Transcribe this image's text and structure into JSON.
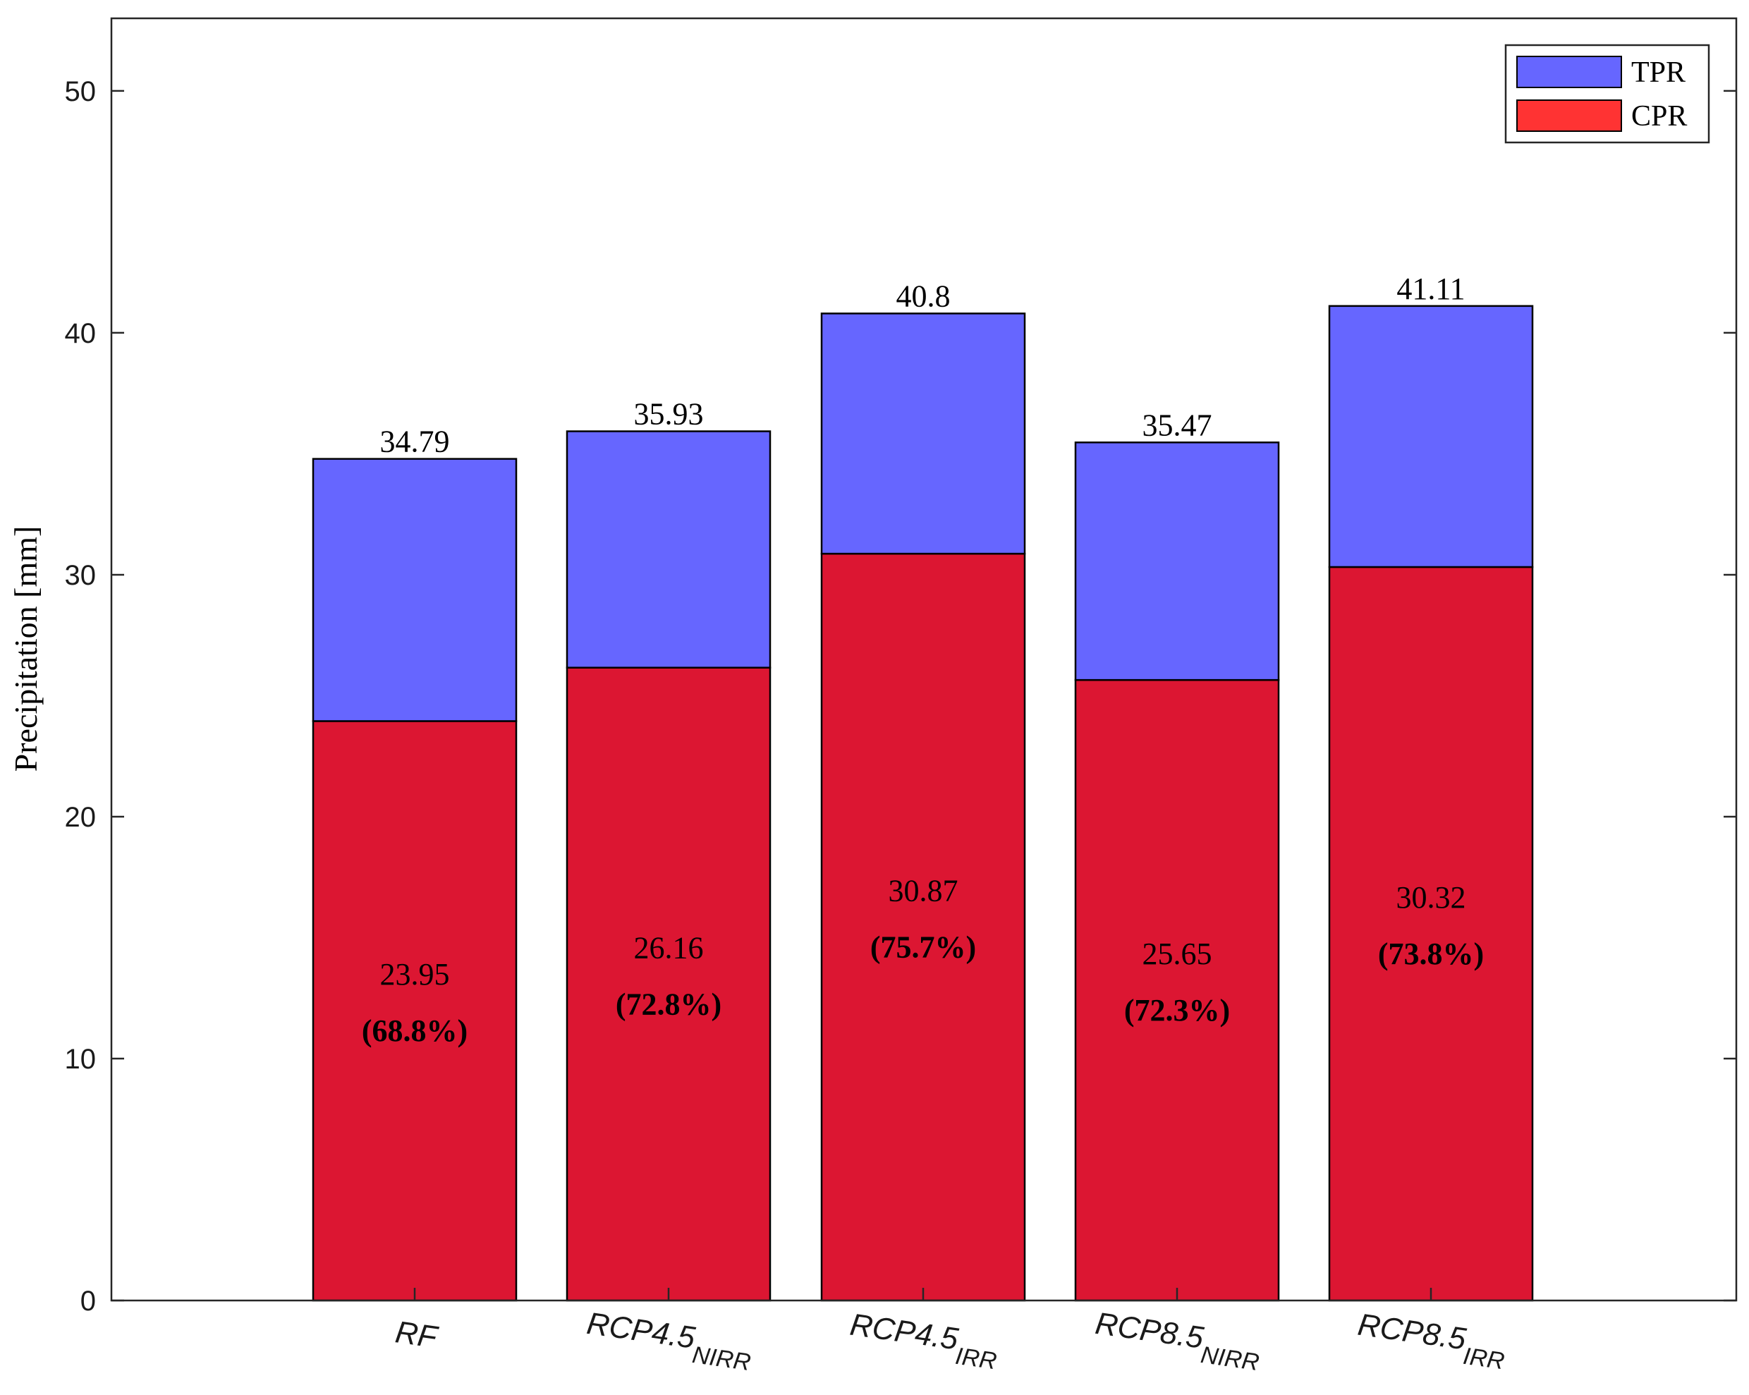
{
  "chart_data": {
    "type": "bar",
    "stacked": true,
    "title": "",
    "xlabel": "",
    "ylabel": "Precipitation [mm]",
    "ylim": [
      0,
      53
    ],
    "yticks": [
      0,
      10,
      20,
      30,
      40,
      50
    ],
    "grid": false,
    "legend_position": "top-right",
    "categories": [
      {
        "base": "RF",
        "sub": ""
      },
      {
        "base": "RCP4.5",
        "sub": "NIRR"
      },
      {
        "base": "RCP4.5",
        "sub": "IRR"
      },
      {
        "base": "RCP8.5",
        "sub": "NIRR"
      },
      {
        "base": "RCP8.5",
        "sub": "IRR"
      }
    ],
    "series": [
      {
        "name": "CPR",
        "color": "#dc1632",
        "values": [
          23.95,
          26.16,
          30.87,
          25.65,
          30.32
        ]
      },
      {
        "name": "TPR",
        "color": "#6666ff",
        "values": [
          10.84,
          9.77,
          9.93,
          9.82,
          10.79
        ]
      }
    ],
    "legend_order": [
      "TPR",
      "CPR"
    ],
    "legend_swatch_colors": {
      "TPR": "#6666ff",
      "CPR": "#ff3333"
    },
    "total_labels": [
      "34.79",
      "35.93",
      "40.8",
      "35.47",
      "41.11"
    ],
    "cpr_labels": [
      "23.95",
      "26.16",
      "30.87",
      "25.65",
      "30.32"
    ],
    "percent_labels": [
      "(68.8%)",
      "(72.8%)",
      "(75.7%)",
      "(72.3%)",
      "(73.8%)"
    ]
  }
}
